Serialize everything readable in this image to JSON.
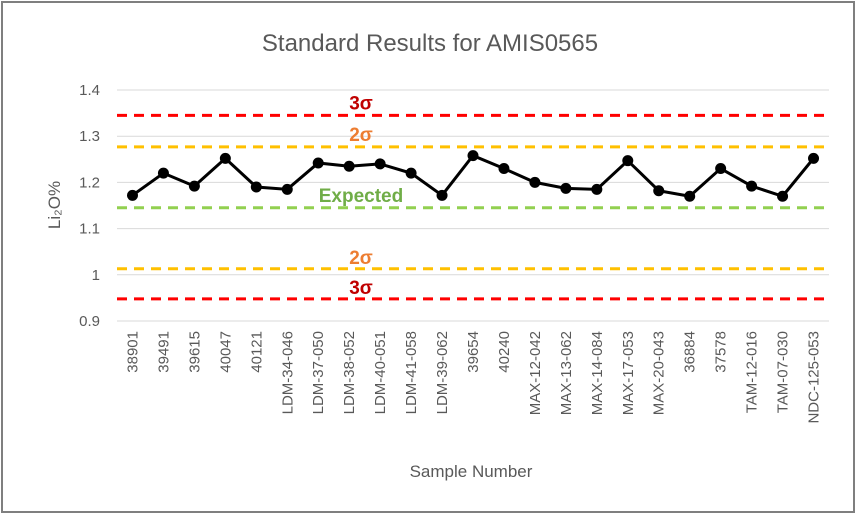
{
  "chart_data": {
    "type": "line",
    "title": "Standard Results for AMIS0565",
    "xlabel": "Sample Number",
    "ylabel": "Li₂O%",
    "ylim": [
      0.9,
      1.4
    ],
    "yticks": [
      "0.9",
      "1",
      "1.1",
      "1.2",
      "1.3",
      "1.4"
    ],
    "grid": true,
    "categories": [
      "38901",
      "39491",
      "39615",
      "40047",
      "40121",
      "LDM-34-046",
      "LDM-37-050",
      "LDM-38-052",
      "LDM-40-051",
      "LDM-41-058",
      "LDM-39-062",
      "39654",
      "40240",
      "MAX-12-042",
      "MAX-13-062",
      "MAX-14-084",
      "MAX-17-053",
      "MAX-20-043",
      "36884",
      "37578",
      "TAM-12-016",
      "TAM-07-030",
      "NDC-125-053"
    ],
    "series": [
      {
        "values": [
          1.172,
          1.22,
          1.192,
          1.252,
          1.19,
          1.185,
          1.242,
          1.235,
          1.24,
          1.22,
          1.172,
          1.258,
          1.23,
          1.2,
          1.187,
          1.185,
          1.247,
          1.182,
          1.17,
          1.23,
          1.192,
          1.17,
          1.252
        ],
        "color": "#000000"
      }
    ],
    "reference_lines": [
      {
        "label": "3σ",
        "value": 1.345,
        "color": "#ff0000",
        "label_color": "#c00000"
      },
      {
        "label": "2σ",
        "value": 1.277,
        "color": "#ffc000",
        "label_color": "#ed7d31"
      },
      {
        "label": "Expected",
        "value": 1.145,
        "color": "#92d050",
        "label_color": "#70ad47"
      },
      {
        "label": "2σ",
        "value": 1.013,
        "color": "#ffc000",
        "label_color": "#ed7d31"
      },
      {
        "label": "3σ",
        "value": 0.948,
        "color": "#ff0000",
        "label_color": "#c00000"
      }
    ]
  }
}
